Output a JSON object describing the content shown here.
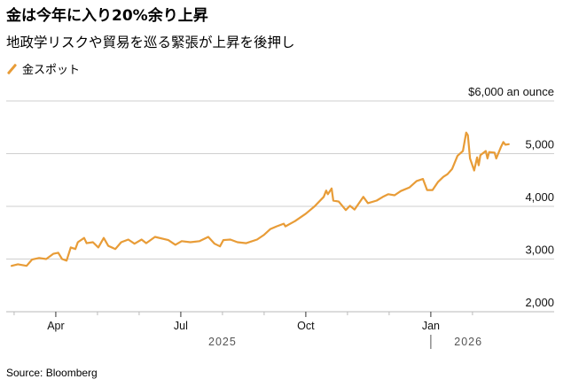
{
  "header": {
    "title": "金は今年に入り20%余り上昇",
    "subtitle": "地政学リスクや貿易を巡る緊張が上昇を後押し"
  },
  "legend": [
    {
      "label": "金スポット",
      "color": "#e89c37"
    }
  ],
  "source": "Source: Bloomberg",
  "chart_data": {
    "type": "line",
    "title": "金は今年に入り20%余り上昇",
    "subtitle": "地政学リスクや貿易を巡る緊張が上昇を後押し",
    "x_unit": "months since 2025-03-01",
    "ylabel": "$6,000 an ounce",
    "ylim": [
      2000,
      6000
    ],
    "xlim": [
      -0.19,
      12.96
    ],
    "yticks": [
      {
        "value": 6000,
        "label": "$6,000 an ounce"
      },
      {
        "value": 5000,
        "label": "5,000"
      },
      {
        "value": 4000,
        "label": "4,000"
      },
      {
        "value": 3000,
        "label": "3,000"
      },
      {
        "value": 2000,
        "label": "2,000"
      }
    ],
    "xticks": [
      {
        "value": 0,
        "label": ""
      },
      {
        "value": 1,
        "label": "Apr"
      },
      {
        "value": 2,
        "label": ""
      },
      {
        "value": 3,
        "label": ""
      },
      {
        "value": 4,
        "label": "Jul"
      },
      {
        "value": 5,
        "label": ""
      },
      {
        "value": 6,
        "label": ""
      },
      {
        "value": 7,
        "label": "Oct"
      },
      {
        "value": 8,
        "label": ""
      },
      {
        "value": 9,
        "label": ""
      },
      {
        "value": 10,
        "label": "Jan"
      },
      {
        "value": 11,
        "label": ""
      }
    ],
    "year_labels": [
      {
        "value": 5.0,
        "label": "2025"
      },
      {
        "value": 10.9,
        "label": "2026"
      }
    ],
    "year_divider": 10,
    "grid": true,
    "legend_position": "top-left",
    "series": [
      {
        "name": "金スポット",
        "color": "#e89c37",
        "points": [
          [
            -0.06,
            2870
          ],
          [
            0.09,
            2900
          ],
          [
            0.3,
            2870
          ],
          [
            0.43,
            2990
          ],
          [
            0.6,
            3020
          ],
          [
            0.77,
            3000
          ],
          [
            0.94,
            3100
          ],
          [
            1.06,
            3120
          ],
          [
            1.15,
            3000
          ],
          [
            1.26,
            2970
          ],
          [
            1.36,
            3220
          ],
          [
            1.47,
            3190
          ],
          [
            1.53,
            3320
          ],
          [
            1.68,
            3400
          ],
          [
            1.74,
            3300
          ],
          [
            1.89,
            3320
          ],
          [
            2.02,
            3220
          ],
          [
            2.15,
            3400
          ],
          [
            2.26,
            3250
          ],
          [
            2.43,
            3190
          ],
          [
            2.57,
            3320
          ],
          [
            2.74,
            3370
          ],
          [
            2.89,
            3290
          ],
          [
            3.06,
            3370
          ],
          [
            3.17,
            3300
          ],
          [
            3.38,
            3420
          ],
          [
            3.7,
            3360
          ],
          [
            3.87,
            3270
          ],
          [
            4.02,
            3340
          ],
          [
            4.23,
            3320
          ],
          [
            4.45,
            3340
          ],
          [
            4.66,
            3420
          ],
          [
            4.81,
            3290
          ],
          [
            4.94,
            3240
          ],
          [
            5.02,
            3360
          ],
          [
            5.19,
            3370
          ],
          [
            5.36,
            3320
          ],
          [
            5.57,
            3300
          ],
          [
            5.83,
            3370
          ],
          [
            6.0,
            3460
          ],
          [
            6.15,
            3570
          ],
          [
            6.3,
            3620
          ],
          [
            6.47,
            3670
          ],
          [
            6.51,
            3620
          ],
          [
            6.74,
            3720
          ],
          [
            7.0,
            3860
          ],
          [
            7.21,
            4000
          ],
          [
            7.43,
            4180
          ],
          [
            7.49,
            4300
          ],
          [
            7.53,
            4230
          ],
          [
            7.62,
            4340
          ],
          [
            7.66,
            4110
          ],
          [
            7.79,
            4090
          ],
          [
            7.96,
            3930
          ],
          [
            8.06,
            4010
          ],
          [
            8.17,
            3940
          ],
          [
            8.38,
            4180
          ],
          [
            8.49,
            4060
          ],
          [
            8.7,
            4110
          ],
          [
            8.85,
            4180
          ],
          [
            8.98,
            4230
          ],
          [
            9.13,
            4210
          ],
          [
            9.28,
            4290
          ],
          [
            9.49,
            4360
          ],
          [
            9.66,
            4480
          ],
          [
            9.81,
            4520
          ],
          [
            9.91,
            4310
          ],
          [
            10.04,
            4310
          ],
          [
            10.17,
            4460
          ],
          [
            10.3,
            4560
          ],
          [
            10.4,
            4610
          ],
          [
            10.51,
            4710
          ],
          [
            10.64,
            4960
          ],
          [
            10.77,
            5050
          ],
          [
            10.85,
            5400
          ],
          [
            10.89,
            5350
          ],
          [
            10.94,
            4910
          ],
          [
            11.04,
            4680
          ],
          [
            11.11,
            4930
          ],
          [
            11.15,
            4780
          ],
          [
            11.19,
            4970
          ],
          [
            11.32,
            5050
          ],
          [
            11.36,
            4910
          ],
          [
            11.4,
            5030
          ],
          [
            11.53,
            5020
          ],
          [
            11.57,
            4910
          ],
          [
            11.68,
            5120
          ],
          [
            11.74,
            5220
          ],
          [
            11.79,
            5170
          ],
          [
            11.87,
            5180
          ]
        ]
      }
    ]
  }
}
